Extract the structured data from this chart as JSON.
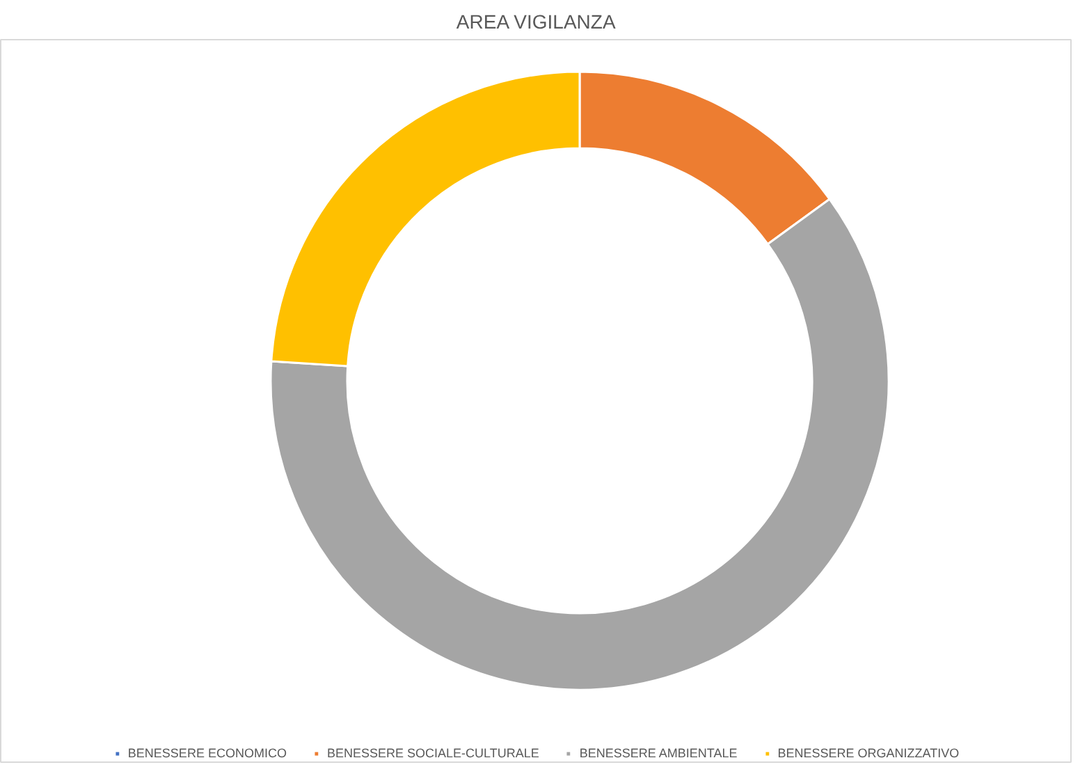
{
  "chart_data": {
    "type": "donut",
    "title": "AREA VIGILANZA",
    "categories": [
      "BENESSERE ECONOMICO",
      "BENESSERE SOCIALE-CULTURALE",
      "BENESSERE AMBIENTALE",
      "BENESSERE ORGANIZZATIVO"
    ],
    "values": [
      0,
      15,
      61,
      24
    ],
    "colors": [
      "#4472c4",
      "#ed7d31",
      "#a5a5a5",
      "#ffc000"
    ],
    "legend": "bottom"
  }
}
